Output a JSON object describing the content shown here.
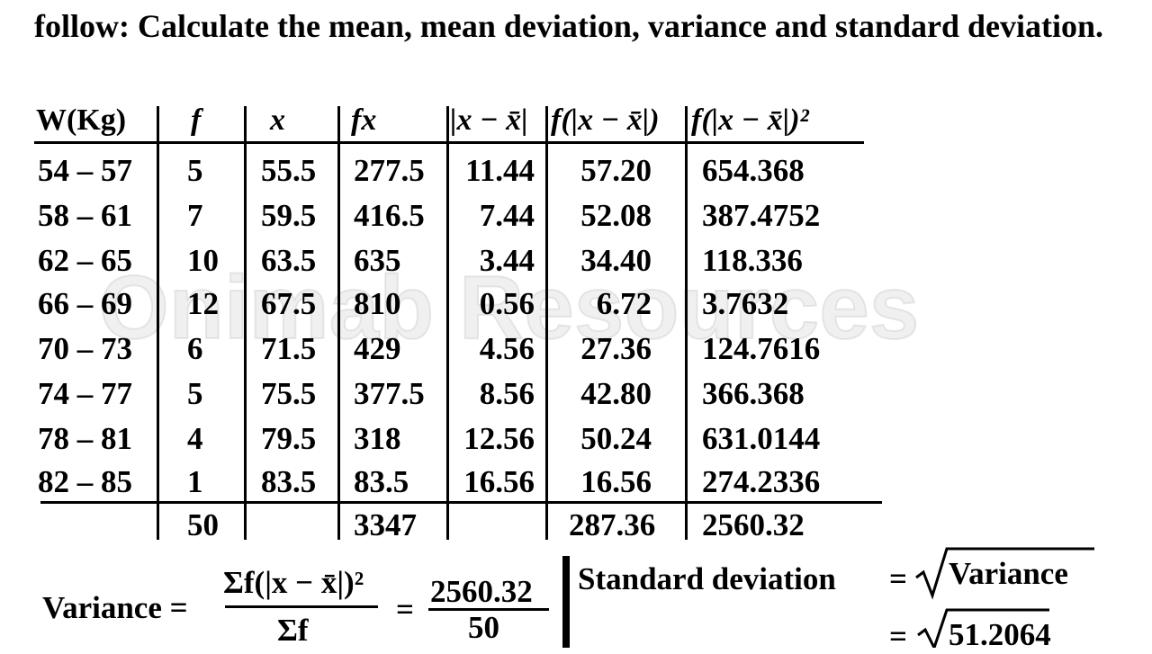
{
  "intro": "follow: Calculate the mean, mean deviation, variance and standard deviation.",
  "watermark": "Onimab Resources",
  "table": {
    "headers": [
      "W(Kg)",
      "f",
      "x",
      "fx",
      "|x − x̄|",
      "f(|x − x̄|)",
      "f(|x − x̄|)²"
    ],
    "rows": [
      [
        "54 – 57",
        "5",
        "55.5",
        "277.5",
        "11.44",
        "57.20",
        "654.368"
      ],
      [
        "58 – 61",
        "7",
        "59.5",
        "416.5",
        "7.44",
        "52.08",
        "387.4752"
      ],
      [
        "62 – 65",
        "10",
        "63.5",
        "635",
        "3.44",
        "34.40",
        "118.336"
      ],
      [
        "66 – 69",
        "12",
        "67.5",
        "810",
        "0.56",
        "6.72",
        "3.7632"
      ],
      [
        "70 – 73",
        "6",
        "71.5",
        "429",
        "4.56",
        "27.36",
        "124.7616"
      ],
      [
        "74 – 77",
        "5",
        "75.5",
        "377.5",
        "8.56",
        "42.80",
        "366.368"
      ],
      [
        "78 – 81",
        "4",
        "79.5",
        "318",
        "12.56",
        "50.24",
        "631.0144"
      ],
      [
        "82 – 85",
        "1",
        "83.5",
        "83.5",
        "16.56",
        "16.56",
        "274.2336"
      ]
    ],
    "totals": {
      "f": "50",
      "fx": "3347",
      "fd": "287.36",
      "fd2": "2560.32"
    }
  },
  "variance": {
    "label": "Variance =",
    "numerator": "Σf(|x − x̄|)²",
    "denominator": "Σf",
    "equals": "=",
    "value_numerator": "2560.32",
    "value_denominator": "50"
  },
  "sd": {
    "label": "Standard deviation",
    "equals": "=",
    "radicand": "Variance",
    "equals2": "=",
    "radicand2": "51.2064"
  }
}
